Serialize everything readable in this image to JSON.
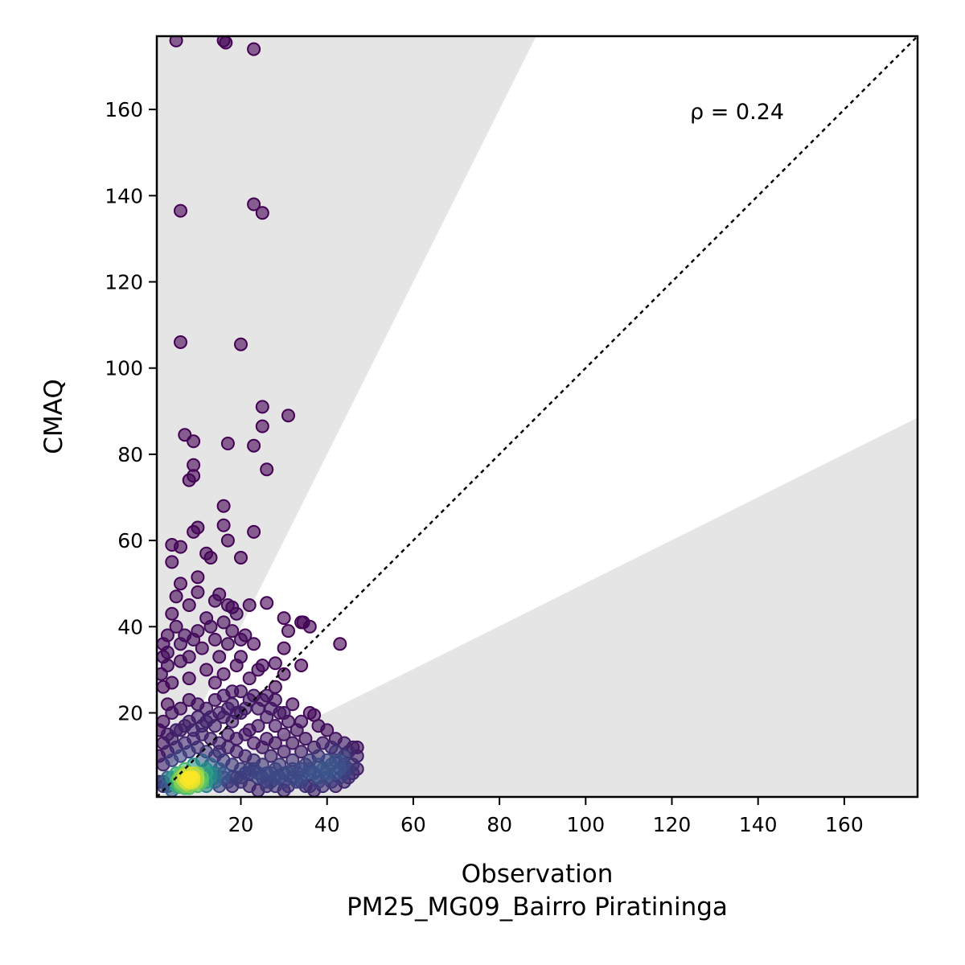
{
  "chart_data": {
    "type": "scatter",
    "title": "",
    "xlabel": "Observation",
    "xlabel_sub": "PM25_MG09_Bairro Piratininga",
    "ylabel": "CMAQ",
    "xlim": [
      0.5,
      177
    ],
    "ylim": [
      0.5,
      177
    ],
    "x_ticks": [
      20,
      40,
      60,
      80,
      100,
      120,
      140,
      160
    ],
    "y_ticks": [
      20,
      40,
      60,
      80,
      100,
      120,
      140,
      160
    ],
    "annotation": "ρ = 0.24",
    "reference_line": "1:1 dashed",
    "shaded_regions": "outside factor-of-2 band (y > 2x and y < x/2)",
    "colormap": "viridis (point density)",
    "grid": false,
    "points": [
      [
        5,
        176
      ],
      [
        16,
        176
      ],
      [
        16.5,
        175.5
      ],
      [
        23,
        174
      ],
      [
        6,
        136.5
      ],
      [
        23,
        138
      ],
      [
        25,
        136
      ],
      [
        6,
        106
      ],
      [
        20,
        105.5
      ],
      [
        25,
        91
      ],
      [
        31,
        89
      ],
      [
        25,
        86.5
      ],
      [
        7,
        84.5
      ],
      [
        9,
        83
      ],
      [
        17,
        82.5
      ],
      [
        23,
        82
      ],
      [
        9,
        77.5
      ],
      [
        26,
        76.5
      ],
      [
        9,
        75
      ],
      [
        8,
        74
      ],
      [
        16,
        68
      ],
      [
        10,
        63
      ],
      [
        16,
        63.5
      ],
      [
        9,
        62
      ],
      [
        23,
        62
      ],
      [
        4,
        59
      ],
      [
        6,
        58.5
      ],
      [
        12,
        57
      ],
      [
        13,
        56
      ],
      [
        20,
        56
      ],
      [
        4,
        55
      ],
      [
        17,
        60
      ],
      [
        10,
        51.5
      ],
      [
        6,
        50
      ],
      [
        10,
        48
      ],
      [
        5,
        47
      ],
      [
        15,
        47.5
      ],
      [
        14,
        46
      ],
      [
        17,
        45
      ],
      [
        18,
        44.5
      ],
      [
        22,
        45
      ],
      [
        26,
        45.5
      ],
      [
        8,
        45
      ],
      [
        4,
        43
      ],
      [
        19,
        43
      ],
      [
        30,
        42
      ],
      [
        34,
        41
      ],
      [
        34.5,
        41
      ],
      [
        36,
        40
      ],
      [
        43,
        36
      ],
      [
        31,
        39
      ],
      [
        23,
        36
      ],
      [
        3,
        38
      ],
      [
        2,
        33
      ],
      [
        34,
        31
      ],
      [
        28,
        31.5
      ],
      [
        30,
        35
      ],
      [
        2,
        26
      ],
      [
        30,
        29
      ],
      [
        1.5,
        29
      ],
      [
        2,
        36
      ],
      [
        3,
        31
      ],
      [
        5,
        40
      ],
      [
        7,
        38
      ],
      [
        9,
        37
      ],
      [
        11,
        35
      ],
      [
        13,
        40
      ],
      [
        15,
        33
      ],
      [
        17,
        36
      ],
      [
        19,
        31
      ],
      [
        21,
        38
      ],
      [
        4,
        27
      ],
      [
        6,
        32
      ],
      [
        8,
        28
      ],
      [
        12,
        30
      ],
      [
        14,
        27
      ],
      [
        16,
        29
      ],
      [
        18,
        25
      ],
      [
        20,
        33
      ],
      [
        22,
        28
      ],
      [
        24,
        30
      ],
      [
        26,
        24
      ],
      [
        28,
        26
      ],
      [
        3,
        22
      ],
      [
        25,
        31
      ],
      [
        10,
        39
      ],
      [
        12,
        42
      ],
      [
        18,
        39
      ],
      [
        20,
        37
      ],
      [
        8,
        33
      ],
      [
        16,
        41
      ],
      [
        14,
        37
      ],
      [
        6,
        36
      ],
      [
        3,
        34
      ],
      [
        28,
        23
      ],
      [
        30,
        20
      ],
      [
        32,
        22
      ],
      [
        34,
        18
      ],
      [
        36,
        20
      ],
      [
        37,
        19.5
      ],
      [
        38,
        17
      ],
      [
        40,
        16
      ],
      [
        42,
        14
      ],
      [
        44,
        13
      ],
      [
        46,
        12
      ],
      [
        47,
        10
      ],
      [
        46,
        8
      ],
      [
        44,
        8
      ],
      [
        42,
        6
      ],
      [
        40,
        7
      ],
      [
        38,
        5
      ],
      [
        36,
        9
      ],
      [
        34,
        11
      ],
      [
        32,
        13
      ],
      [
        30,
        15
      ],
      [
        28,
        17
      ],
      [
        26,
        19
      ],
      [
        24,
        21
      ],
      [
        22,
        23
      ],
      [
        20,
        25
      ],
      [
        18,
        22
      ],
      [
        16,
        24
      ],
      [
        14,
        23
      ],
      [
        12,
        21
      ],
      [
        10,
        22
      ],
      [
        8,
        23
      ],
      [
        6,
        21
      ],
      [
        4,
        20
      ],
      [
        2,
        18
      ],
      [
        1,
        16
      ],
      [
        2,
        13
      ],
      [
        4,
        14
      ],
      [
        6,
        16
      ],
      [
        8,
        18
      ],
      [
        10,
        19
      ],
      [
        12,
        18
      ],
      [
        14,
        17
      ],
      [
        16,
        19
      ],
      [
        18,
        18
      ],
      [
        20,
        20
      ],
      [
        22,
        16
      ],
      [
        24,
        17
      ],
      [
        26,
        14
      ],
      [
        28,
        13
      ],
      [
        30,
        11
      ],
      [
        32,
        9
      ],
      [
        34,
        7
      ],
      [
        36,
        6
      ],
      [
        38,
        10
      ],
      [
        40,
        9
      ],
      [
        42,
        11
      ],
      [
        44,
        10
      ],
      [
        45,
        7
      ],
      [
        43,
        5
      ],
      [
        41,
        4
      ],
      [
        39,
        3
      ],
      [
        37,
        2
      ],
      [
        35,
        3
      ],
      [
        33,
        4
      ],
      [
        31,
        6
      ],
      [
        29,
        8
      ],
      [
        27,
        10
      ],
      [
        25,
        12
      ],
      [
        23,
        13
      ],
      [
        21,
        15
      ],
      [
        19,
        14
      ],
      [
        17,
        15
      ],
      [
        15,
        13
      ],
      [
        13,
        14
      ],
      [
        11,
        15
      ],
      [
        9,
        14
      ],
      [
        7,
        13
      ],
      [
        5,
        12
      ],
      [
        3,
        11
      ],
      [
        1,
        10
      ],
      [
        2,
        8
      ],
      [
        4,
        9
      ],
      [
        6,
        10
      ],
      [
        8,
        11
      ],
      [
        10,
        12
      ],
      [
        12,
        11
      ],
      [
        14,
        10
      ],
      [
        16,
        9
      ],
      [
        18,
        8
      ],
      [
        20,
        7
      ],
      [
        22,
        6
      ],
      [
        24,
        5
      ],
      [
        26,
        4
      ],
      [
        28,
        3
      ],
      [
        30,
        2
      ],
      [
        27,
        6
      ],
      [
        25,
        8
      ],
      [
        23,
        9
      ],
      [
        21,
        10
      ],
      [
        19,
        11
      ],
      [
        17,
        12
      ],
      [
        15,
        11
      ],
      [
        13,
        8
      ],
      [
        11,
        9
      ],
      [
        9,
        8
      ],
      [
        7,
        7
      ],
      [
        5,
        6
      ],
      [
        3,
        5
      ],
      [
        1,
        4
      ],
      [
        2,
        3
      ],
      [
        4,
        2
      ],
      [
        6,
        3
      ],
      [
        8,
        4
      ],
      [
        10,
        5
      ],
      [
        12,
        4
      ],
      [
        14,
        5
      ],
      [
        16,
        6
      ],
      [
        18,
        5
      ],
      [
        20,
        4
      ],
      [
        22,
        3
      ],
      [
        24,
        2
      ],
      [
        26,
        3
      ],
      [
        28,
        5
      ],
      [
        30,
        6
      ],
      [
        32,
        5
      ],
      [
        34,
        4
      ],
      [
        36,
        3
      ],
      [
        38,
        4
      ],
      [
        40,
        5
      ],
      [
        42,
        3
      ],
      [
        44,
        4
      ],
      [
        33,
        16
      ],
      [
        35,
        14
      ],
      [
        37,
        12
      ],
      [
        39,
        13
      ],
      [
        41,
        12
      ],
      [
        43,
        9
      ],
      [
        45,
        11
      ],
      [
        47,
        12
      ],
      [
        31,
        18
      ],
      [
        29,
        20
      ],
      [
        27,
        21
      ],
      [
        25,
        23
      ],
      [
        23,
        24
      ],
      [
        21,
        21
      ],
      [
        19,
        20
      ],
      [
        17,
        21
      ],
      [
        15,
        20
      ],
      [
        13,
        19
      ],
      [
        11,
        17
      ],
      [
        9,
        16
      ],
      [
        7,
        17
      ],
      [
        5,
        16
      ],
      [
        3,
        15
      ],
      [
        6,
        5
      ],
      [
        7,
        4
      ],
      [
        8,
        6
      ],
      [
        9,
        5
      ],
      [
        10,
        4
      ],
      [
        7,
        3
      ],
      [
        8,
        3
      ],
      [
        9,
        6
      ],
      [
        6,
        4
      ],
      [
        8,
        5
      ],
      [
        10,
        6
      ],
      [
        11,
        5
      ],
      [
        12,
        6
      ],
      [
        5,
        4
      ],
      [
        4,
        5
      ],
      [
        9,
        4
      ],
      [
        10,
        3
      ],
      [
        11,
        4
      ],
      [
        12,
        3
      ],
      [
        13,
        5
      ],
      [
        14,
        4
      ],
      [
        15,
        3
      ],
      [
        3,
        3
      ],
      [
        2,
        4
      ],
      [
        5,
        3
      ],
      [
        6,
        6
      ],
      [
        7,
        6
      ],
      [
        12,
        7
      ],
      [
        13,
        6
      ],
      [
        14,
        6
      ],
      [
        15,
        7
      ],
      [
        16,
        5
      ],
      [
        17,
        4
      ],
      [
        18,
        3
      ],
      [
        19,
        5
      ],
      [
        20,
        5
      ],
      [
        21,
        6
      ],
      [
        22,
        7
      ],
      [
        23,
        7
      ],
      [
        24,
        6
      ],
      [
        25,
        5
      ],
      [
        26,
        6
      ],
      [
        27,
        4
      ],
      [
        28,
        7
      ],
      [
        29,
        5
      ],
      [
        30,
        4
      ],
      [
        31,
        3
      ],
      [
        32,
        7
      ],
      [
        33,
        6
      ],
      [
        34,
        5
      ],
      [
        35,
        8
      ],
      [
        36,
        7
      ],
      [
        37,
        6
      ],
      [
        38,
        8
      ],
      [
        39,
        7
      ],
      [
        40,
        6
      ],
      [
        41,
        8
      ],
      [
        42,
        9
      ],
      [
        43,
        7
      ],
      [
        44,
        6
      ],
      [
        45,
        5
      ],
      [
        46,
        6
      ],
      [
        47,
        7
      ],
      [
        6.5,
        4.5
      ],
      [
        7.5,
        4.5
      ],
      [
        8,
        4
      ],
      [
        8.5,
        5
      ],
      [
        7,
        5
      ],
      [
        9,
        4.5
      ],
      [
        7.5,
        3.5
      ],
      [
        8.5,
        3.8
      ],
      [
        6,
        3.5
      ],
      [
        7,
        2.5
      ],
      [
        8,
        2.5
      ],
      [
        9.5,
        3.5
      ],
      [
        10,
        4.8
      ],
      [
        6.8,
        5.5
      ],
      [
        7.8,
        5.8
      ],
      [
        8.8,
        6
      ],
      [
        5.5,
        4.8
      ],
      [
        5.5,
        2.8
      ],
      [
        9.8,
        5.5
      ],
      [
        10.5,
        3.8
      ]
    ]
  }
}
